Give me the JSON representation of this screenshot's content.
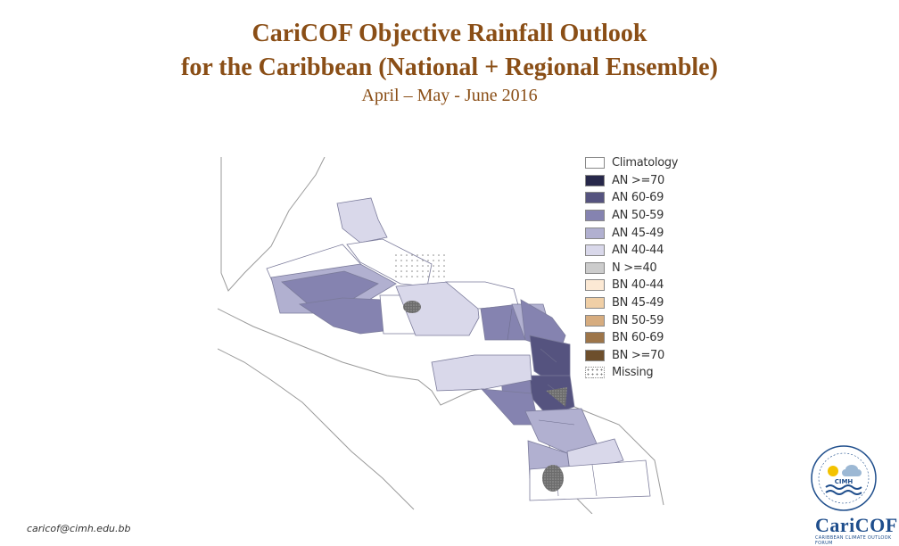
{
  "title_line1": "CariCOF Objective Rainfall Outlook",
  "title_line2": "for the Caribbean (National + Regional Ensemble)",
  "subtitle": "April – May - June 2016",
  "legend": [
    {
      "label": "Climatology",
      "color": "#ffffff",
      "pattern": "none"
    },
    {
      "label": "AN >=70",
      "color": "#27284a",
      "pattern": "none"
    },
    {
      "label": "AN 60-69",
      "color": "#55537f",
      "pattern": "none"
    },
    {
      "label": "AN 50-59",
      "color": "#8583b0",
      "pattern": "none"
    },
    {
      "label": "AN 45-49",
      "color": "#b1b0d0",
      "pattern": "none"
    },
    {
      "label": "AN 40-44",
      "color": "#d9d8ea",
      "pattern": "none"
    },
    {
      "label": "N >=40",
      "color": "#cccccc",
      "pattern": "none"
    },
    {
      "label": "BN 40-44",
      "color": "#fce9d4",
      "pattern": "none"
    },
    {
      "label": "BN 45-49",
      "color": "#f0cfa6",
      "pattern": "none"
    },
    {
      "label": "BN 50-59",
      "color": "#d6ac7f",
      "pattern": "none"
    },
    {
      "label": "BN 60-69",
      "color": "#9d7549",
      "pattern": "none"
    },
    {
      "label": "BN >=70",
      "color": "#6d4f2c",
      "pattern": "none"
    },
    {
      "label": "Missing",
      "color": "#ffffff",
      "pattern": "dots"
    }
  ],
  "footer_email": "caricof@cimh.edu.bb",
  "logo": {
    "name": "CariCOF",
    "badge": "CIMH",
    "tagline": "CARIBBEAN CLIMATE OUTLOOK FORUM"
  },
  "colors": {
    "title": "#8a4e16",
    "logo": "#1f4e8c",
    "land_outline": "#9a9a9a"
  }
}
